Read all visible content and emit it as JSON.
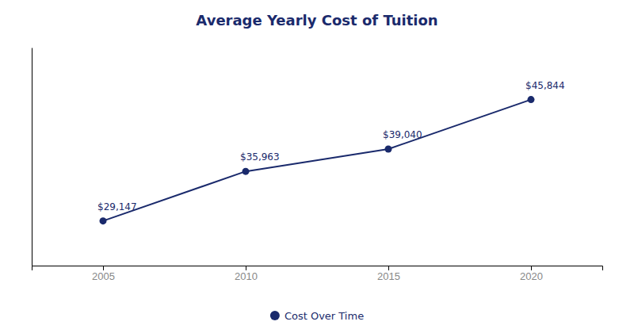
{
  "chart_data": {
    "type": "line",
    "title": "Average Yearly Cost of Tuition",
    "x": [
      2005,
      2010,
      2015,
      2020
    ],
    "series": [
      {
        "name": "Cost Over Time",
        "color": "#1a2a6c",
        "values": [
          29147,
          35963,
          39040,
          45844
        ],
        "value_labels": [
          "$29,147",
          "$35,963",
          "$39,040",
          "$45,844"
        ]
      }
    ],
    "xlim": [
      2002.5,
      2022.5
    ],
    "xticks": [
      2005,
      2010,
      2015,
      2020
    ],
    "ylim": [
      23000,
      53000
    ],
    "tick_labels": "x",
    "data_labels": true,
    "marker": "circle",
    "legend": "bottom"
  }
}
